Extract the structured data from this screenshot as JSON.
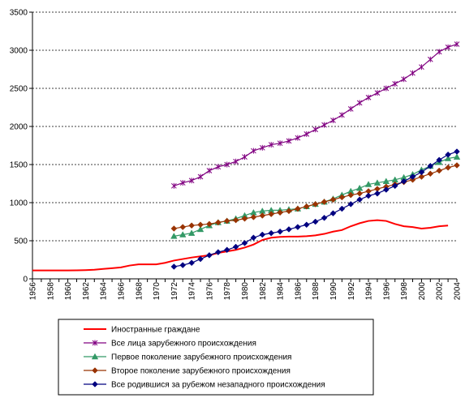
{
  "chart_data": {
    "type": "line",
    "title": "",
    "xlabel": "",
    "ylabel": "",
    "xlim": [
      1956,
      2004
    ],
    "ylim": [
      0,
      3500
    ],
    "y_ticks": [
      0,
      500,
      1000,
      1500,
      2000,
      2500,
      3000,
      3500
    ],
    "x_ticks": [
      1956,
      1958,
      1960,
      1962,
      1964,
      1966,
      1968,
      1970,
      1972,
      1974,
      1976,
      1978,
      1980,
      1982,
      1984,
      1986,
      1988,
      1990,
      1992,
      1994,
      1996,
      1998,
      2000,
      2002,
      2004
    ],
    "grid": "horizontal dashed",
    "legend_position": "bottom",
    "series": [
      {
        "name": "Иностранные граждане",
        "color": "#ff0000",
        "marker": "none",
        "x": [
          1956,
          1957,
          1958,
          1959,
          1960,
          1961,
          1962,
          1963,
          1964,
          1965,
          1966,
          1967,
          1968,
          1969,
          1970,
          1971,
          1972,
          1973,
          1974,
          1975,
          1976,
          1977,
          1978,
          1979,
          1980,
          1981,
          1982,
          1983,
          1984,
          1985,
          1986,
          1987,
          1988,
          1989,
          1990,
          1991,
          1992,
          1993,
          1994,
          1995,
          1996,
          1997,
          1998,
          1999,
          2000,
          2001,
          2002,
          2003
        ],
        "y": [
          110,
          110,
          110,
          110,
          110,
          112,
          115,
          120,
          130,
          140,
          150,
          175,
          190,
          190,
          190,
          210,
          240,
          260,
          280,
          295,
          310,
          340,
          360,
          380,
          410,
          450,
          510,
          540,
          550,
          555,
          555,
          560,
          570,
          590,
          620,
          640,
          690,
          730,
          760,
          770,
          760,
          720,
          690,
          680,
          660,
          670,
          690,
          700
        ]
      },
      {
        "name": "Все лица зарубежного происхождения",
        "color": "#800080",
        "marker": "star",
        "x": [
          1972,
          1973,
          1974,
          1975,
          1976,
          1977,
          1978,
          1979,
          1980,
          1981,
          1982,
          1983,
          1984,
          1985,
          1986,
          1987,
          1988,
          1989,
          1990,
          1991,
          1992,
          1993,
          1994,
          1995,
          1996,
          1997,
          1998,
          1999,
          2000,
          2001,
          2002,
          2003,
          2004
        ],
        "y": [
          1220,
          1260,
          1290,
          1340,
          1420,
          1470,
          1500,
          1540,
          1600,
          1680,
          1720,
          1760,
          1780,
          1810,
          1850,
          1900,
          1960,
          2020,
          2080,
          2150,
          2230,
          2310,
          2380,
          2440,
          2500,
          2560,
          2620,
          2700,
          2780,
          2880,
          2980,
          3040,
          3080
        ]
      },
      {
        "name": "Первое поколение зарубежного происхождения",
        "color": "#339966",
        "marker": "triangle",
        "x": [
          1972,
          1973,
          1974,
          1975,
          1976,
          1977,
          1978,
          1979,
          1980,
          1981,
          1982,
          1983,
          1984,
          1985,
          1986,
          1987,
          1988,
          1989,
          1990,
          1991,
          1992,
          1993,
          1994,
          1995,
          1996,
          1997,
          1998,
          1999,
          2000,
          2001,
          2002,
          2003,
          2004
        ],
        "y": [
          560,
          580,
          600,
          650,
          700,
          740,
          760,
          790,
          830,
          870,
          890,
          900,
          900,
          910,
          920,
          950,
          980,
          1010,
          1050,
          1100,
          1150,
          1190,
          1240,
          1260,
          1280,
          1300,
          1330,
          1370,
          1430,
          1480,
          1530,
          1580,
          1600
        ]
      },
      {
        "name": "Второе поколение зарубежного происхождения",
        "color": "#993300",
        "marker": "diamond",
        "x": [
          1972,
          1973,
          1974,
          1975,
          1976,
          1977,
          1978,
          1979,
          1980,
          1981,
          1982,
          1983,
          1984,
          1985,
          1986,
          1987,
          1988,
          1989,
          1990,
          1991,
          1992,
          1993,
          1994,
          1995,
          1996,
          1997,
          1998,
          1999,
          2000,
          2001,
          2002,
          2003,
          2004
        ],
        "y": [
          660,
          680,
          700,
          710,
          720,
          740,
          760,
          770,
          790,
          810,
          830,
          850,
          870,
          890,
          920,
          950,
          980,
          1010,
          1040,
          1070,
          1100,
          1120,
          1150,
          1180,
          1210,
          1240,
          1270,
          1300,
          1340,
          1380,
          1420,
          1460,
          1490
        ]
      },
      {
        "name": "Все родившися за рубежом незападного происхождения",
        "color": "#000080",
        "marker": "diamond",
        "x": [
          1972,
          1973,
          1974,
          1975,
          1976,
          1977,
          1978,
          1979,
          1980,
          1981,
          1982,
          1983,
          1984,
          1985,
          1986,
          1987,
          1988,
          1989,
          1990,
          1991,
          1992,
          1993,
          1994,
          1995,
          1996,
          1997,
          1998,
          1999,
          2000,
          2001,
          2002,
          2003,
          2004
        ],
        "y": [
          160,
          180,
          210,
          260,
          310,
          350,
          380,
          420,
          470,
          540,
          580,
          600,
          620,
          650,
          680,
          710,
          750,
          800,
          860,
          920,
          980,
          1040,
          1090,
          1120,
          1170,
          1220,
          1280,
          1340,
          1400,
          1480,
          1560,
          1630,
          1670
        ]
      }
    ]
  }
}
